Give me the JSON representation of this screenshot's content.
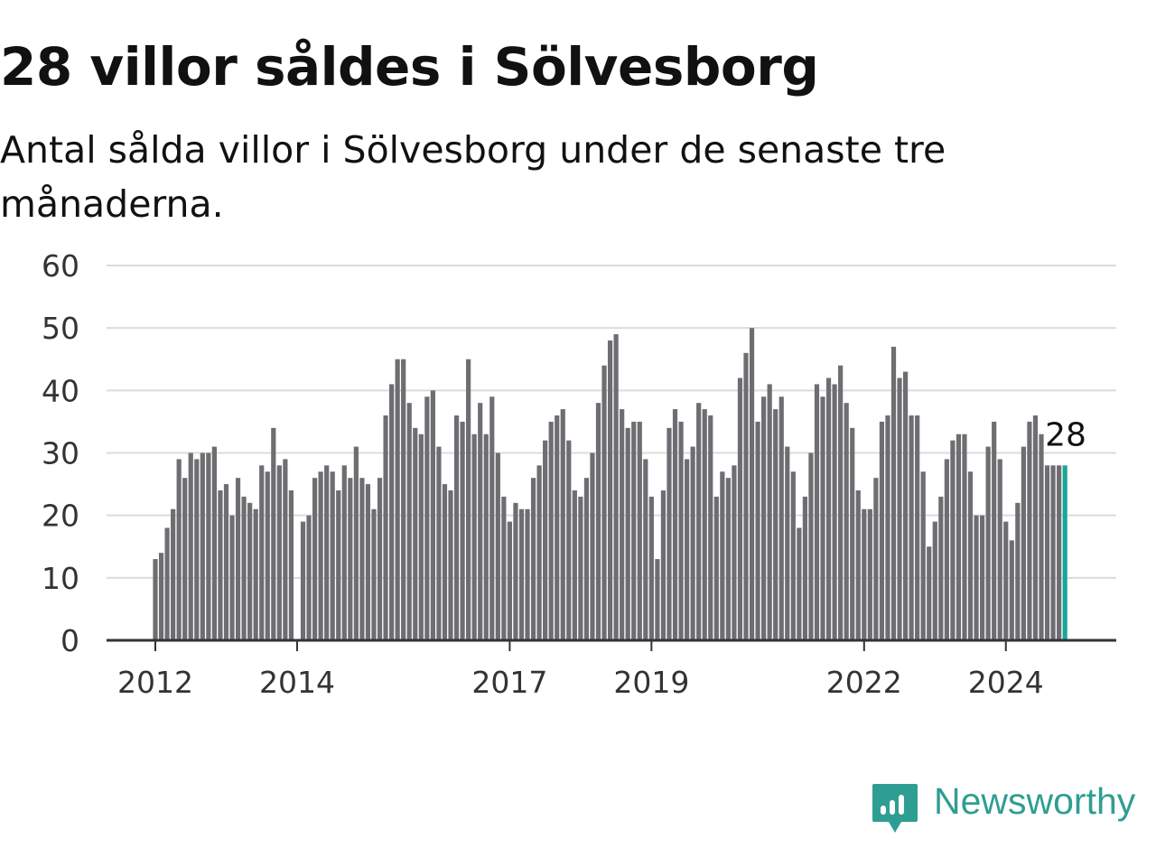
{
  "title": "28 villor såldes i Sölvesborg",
  "subtitle": "Antal sålda villor i Sölvesborg under de senaste tre månaderna.",
  "brand": {
    "name": "Newsworthy",
    "color": "#2f9e92",
    "icon": "newsworthy-logo-icon"
  },
  "chart_data": {
    "type": "bar",
    "title": "28 villor såldes i Sölvesborg",
    "subtitle": "Antal sålda villor i Sölvesborg under de senaste tre månaderna.",
    "xlabel": "",
    "ylabel": "",
    "ylim": [
      0,
      60
    ],
    "yticks": [
      "0",
      "10",
      "20",
      "30",
      "40",
      "50",
      "60"
    ],
    "xticks": [
      "2012",
      "2014",
      "2017",
      "2019",
      "2022",
      "2024"
    ],
    "grid": true,
    "start": "2012-01",
    "bar_color": "#6e6e72",
    "highlight_color": "#1aa69a",
    "highlight_label": "28",
    "values": [
      13,
      14,
      18,
      21,
      29,
      26,
      30,
      29,
      30,
      30,
      31,
      24,
      25,
      20,
      26,
      23,
      22,
      21,
      28,
      27,
      34,
      28,
      29,
      24,
      null,
      19,
      20,
      26,
      27,
      28,
      27,
      24,
      28,
      26,
      31,
      26,
      25,
      21,
      26,
      36,
      41,
      45,
      45,
      38,
      34,
      33,
      39,
      40,
      31,
      25,
      24,
      36,
      35,
      45,
      33,
      38,
      33,
      39,
      30,
      23,
      19,
      22,
      21,
      21,
      26,
      28,
      32,
      35,
      36,
      37,
      32,
      24,
      23,
      26,
      30,
      38,
      44,
      48,
      49,
      37,
      34,
      35,
      35,
      29,
      23,
      13,
      24,
      34,
      37,
      35,
      29,
      31,
      38,
      37,
      36,
      23,
      27,
      26,
      28,
      42,
      46,
      50,
      35,
      39,
      41,
      37,
      39,
      31,
      27,
      18,
      23,
      30,
      41,
      39,
      42,
      41,
      44,
      38,
      34,
      24,
      21,
      21,
      26,
      35,
      36,
      47,
      42,
      43,
      36,
      36,
      27,
      15,
      19,
      23,
      29,
      32,
      33,
      33,
      27,
      20,
      20,
      31,
      35,
      29,
      19,
      16,
      22,
      31,
      35,
      36,
      33,
      28,
      28,
      28,
      28
    ]
  }
}
